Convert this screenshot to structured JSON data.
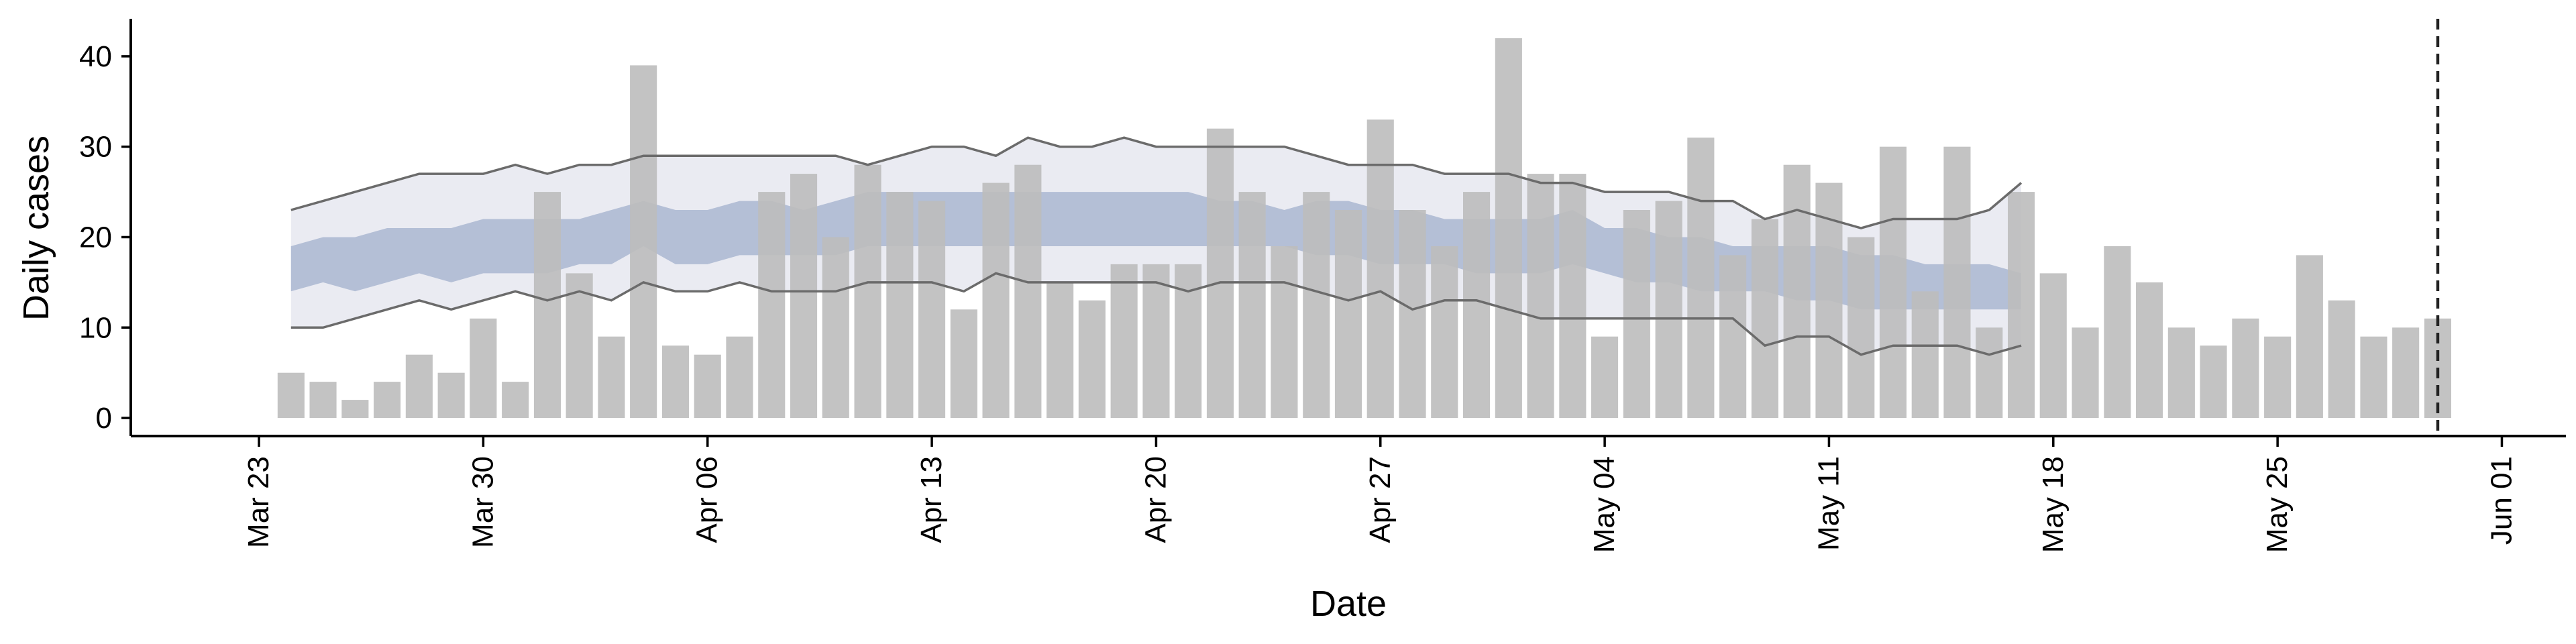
{
  "chart_data": {
    "type": "bar",
    "xlabel": "Date",
    "ylabel": "Daily cases",
    "ylim": [
      -2,
      44
    ],
    "yticks": [
      0,
      10,
      20,
      30,
      40
    ],
    "xlim": [
      "2020-03-19",
      "2020-06-03"
    ],
    "xticks": [
      {
        "date": "2020-03-23",
        "label": "Mar 23"
      },
      {
        "date": "2020-03-30",
        "label": "Mar 30"
      },
      {
        "date": "2020-04-06",
        "label": "Apr 06"
      },
      {
        "date": "2020-04-13",
        "label": "Apr 13"
      },
      {
        "date": "2020-04-20",
        "label": "Apr 20"
      },
      {
        "date": "2020-04-27",
        "label": "Apr 27"
      },
      {
        "date": "2020-05-04",
        "label": "May 04"
      },
      {
        "date": "2020-05-11",
        "label": "May 11"
      },
      {
        "date": "2020-05-18",
        "label": "May 18"
      },
      {
        "date": "2020-05-25",
        "label": "May 25"
      },
      {
        "date": "2020-06-01",
        "label": "Jun 01"
      }
    ],
    "bars": {
      "start_date": "2020-03-24",
      "values": [
        5,
        4,
        2,
        4,
        7,
        5,
        11,
        4,
        25,
        16,
        9,
        39,
        8,
        7,
        9,
        25,
        27,
        20,
        28,
        25,
        24,
        12,
        26,
        28,
        15,
        13,
        17,
        17,
        17,
        32,
        25,
        19,
        25,
        23,
        33,
        23,
        19,
        25,
        42,
        27,
        27,
        9,
        23,
        24,
        31,
        18,
        22,
        28,
        26,
        20,
        30,
        14,
        30,
        10,
        25,
        16,
        10,
        19,
        15,
        10,
        8,
        11,
        9,
        18,
        13,
        9,
        10,
        11
      ],
      "color": "#bdbdbd"
    },
    "band_outer": {
      "start_date": "2020-03-24",
      "upper": [
        23,
        24,
        25,
        26,
        27,
        27,
        27,
        28,
        27,
        28,
        28,
        29,
        29,
        29,
        29,
        29,
        29,
        29,
        28,
        29,
        30,
        30,
        29,
        31,
        30,
        30,
        31,
        30,
        30,
        30,
        30,
        30,
        29,
        28,
        28,
        28,
        27,
        27,
        27,
        26,
        26,
        25,
        25,
        25,
        24,
        24,
        22,
        23,
        22,
        21,
        22,
        22,
        22,
        23,
        26
      ],
      "lower": [
        10,
        10,
        11,
        12,
        13,
        12,
        13,
        14,
        13,
        14,
        13,
        15,
        14,
        14,
        15,
        14,
        14,
        14,
        15,
        15,
        15,
        14,
        16,
        15,
        15,
        15,
        15,
        15,
        14,
        15,
        15,
        15,
        14,
        13,
        14,
        12,
        13,
        13,
        12,
        11,
        11,
        11,
        11,
        11,
        11,
        11,
        8,
        9,
        9,
        7,
        8,
        8,
        8,
        7,
        8
      ],
      "color": "#eaebf2",
      "edge_color": "#6b6b6b"
    },
    "band_inner": {
      "start_date": "2020-03-24",
      "upper": [
        19,
        20,
        20,
        21,
        21,
        21,
        22,
        22,
        22,
        22,
        23,
        24,
        23,
        23,
        24,
        24,
        23,
        24,
        25,
        25,
        25,
        25,
        25,
        25,
        25,
        25,
        25,
        25,
        25,
        24,
        24,
        23,
        24,
        24,
        23,
        23,
        22,
        22,
        22,
        22,
        23,
        21,
        21,
        20,
        20,
        19,
        19,
        19,
        19,
        18,
        18,
        17,
        17,
        17,
        16
      ],
      "lower": [
        14,
        15,
        14,
        15,
        16,
        15,
        16,
        16,
        16,
        17,
        17,
        19,
        17,
        17,
        18,
        18,
        18,
        18,
        19,
        19,
        19,
        19,
        19,
        19,
        19,
        19,
        19,
        19,
        19,
        19,
        19,
        19,
        18,
        18,
        17,
        17,
        17,
        16,
        16,
        16,
        17,
        16,
        15,
        15,
        14,
        14,
        14,
        13,
        13,
        12,
        12,
        12,
        12,
        12,
        12
      ],
      "color": "#b4bfd6"
    },
    "cutoff_date": "2020-05-30"
  }
}
